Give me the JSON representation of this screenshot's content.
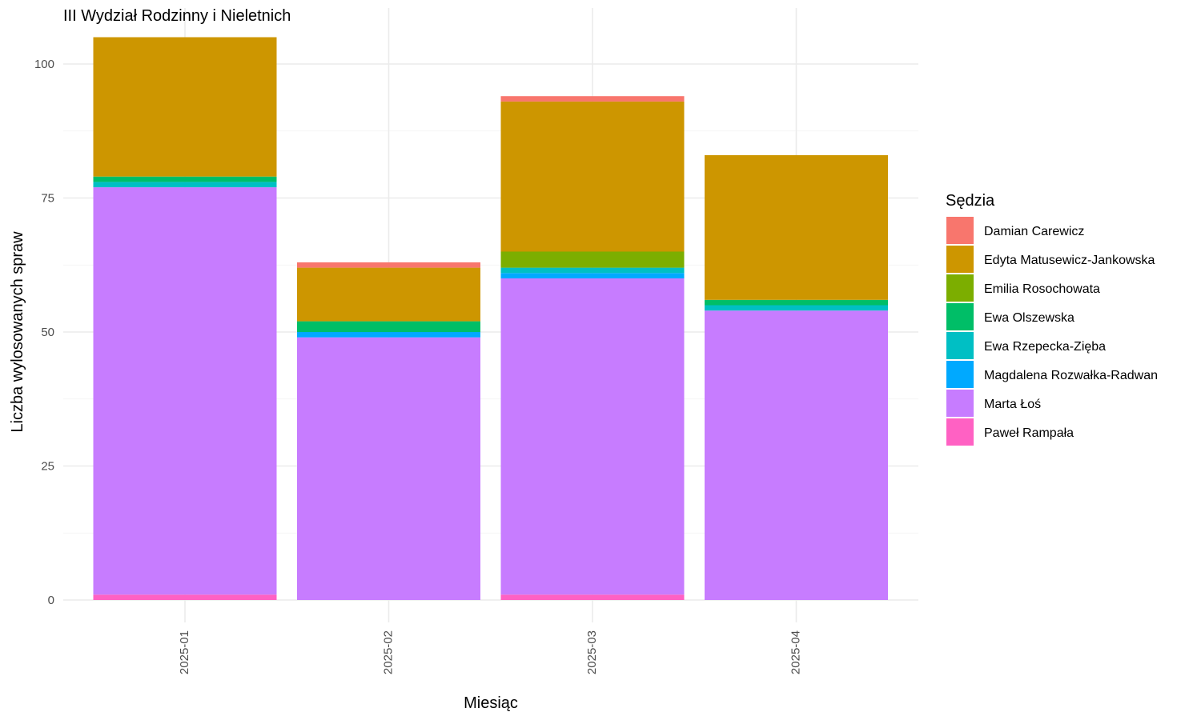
{
  "chart_data": {
    "type": "bar",
    "stacked": true,
    "title": "III Wydział Rodzinny i Nieletnich",
    "xlabel": "Miesiąc",
    "ylabel": "Liczba wylosowanych spraw",
    "ylim": [
      0,
      105
    ],
    "yticks": [
      0,
      25,
      50,
      75,
      100
    ],
    "grid": true,
    "legend_title": "Sędzia",
    "legend_position": "right",
    "categories": [
      "2025-01",
      "2025-02",
      "2025-03",
      "2025-04"
    ],
    "series": [
      {
        "name": "Paweł Rampała",
        "color": "#FF61C3",
        "values": [
          1,
          0,
          1,
          0
        ]
      },
      {
        "name": "Marta Łoś",
        "color": "#C77CFF",
        "values": [
          76,
          49,
          59,
          54
        ]
      },
      {
        "name": "Magdalena Rozwałka-Radwan",
        "color": "#00A9FF",
        "values": [
          0,
          1,
          1,
          0
        ]
      },
      {
        "name": "Ewa Rzepecka-Zięba",
        "color": "#00BFC4",
        "values": [
          1,
          0,
          1,
          1
        ]
      },
      {
        "name": "Ewa Olszewska",
        "color": "#00BE67",
        "values": [
          1,
          2,
          0,
          1
        ]
      },
      {
        "name": "Emilia Rosochowata",
        "color": "#7CAE00",
        "values": [
          0,
          0,
          3,
          0
        ]
      },
      {
        "name": "Edyta Matusewicz-Jankowska",
        "color": "#CD9600",
        "values": [
          26,
          10,
          28,
          27
        ]
      },
      {
        "name": "Damian Carewicz",
        "color": "#F8766D",
        "values": [
          0,
          1,
          1,
          0
        ]
      }
    ],
    "legend_order": [
      "Damian Carewicz",
      "Edyta Matusewicz-Jankowska",
      "Emilia Rosochowata",
      "Ewa Olszewska",
      "Ewa Rzepecka-Zięba",
      "Magdalena Rozwałka-Radwan",
      "Marta Łoś",
      "Paweł Rampała"
    ]
  }
}
